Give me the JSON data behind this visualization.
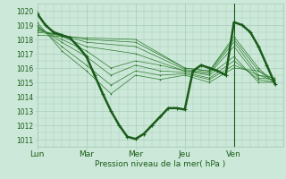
{
  "bg_color": "#cce8d8",
  "grid_color": "#aaccbb",
  "line_color_main": "#1a5c1a",
  "line_color_thin": "#2d7a2d",
  "xlabel": "Pression niveau de la mer( hPa )",
  "xtick_labels": [
    "Lun",
    "Mar",
    "Mer",
    "Jeu",
    "Ven"
  ],
  "ylim": [
    1010.5,
    1020.5
  ],
  "yticks": [
    1011,
    1012,
    1013,
    1014,
    1015,
    1016,
    1017,
    1018,
    1019,
    1020
  ],
  "x_days": [
    0,
    1,
    2,
    3,
    4
  ],
  "xlim": [
    0,
    5.0
  ],
  "vline_x": 4.0,
  "main_line_x": [
    0.0,
    0.167,
    0.333,
    0.5,
    0.667,
    0.833,
    1.0,
    1.167,
    1.333,
    1.5,
    1.667,
    1.833,
    2.0,
    2.167,
    2.333,
    2.5,
    2.667,
    2.833,
    3.0,
    3.167,
    3.333,
    3.5,
    3.667,
    3.833,
    4.0,
    4.167,
    4.333,
    4.5,
    4.667,
    4.833
  ],
  "main_line_y": [
    1019.8,
    1019.0,
    1018.5,
    1018.3,
    1018.1,
    1017.5,
    1016.8,
    1015.5,
    1014.2,
    1013.0,
    1012.0,
    1011.2,
    1011.05,
    1011.4,
    1012.0,
    1012.6,
    1013.2,
    1013.2,
    1013.1,
    1015.8,
    1016.2,
    1016.0,
    1015.8,
    1015.5,
    1019.2,
    1019.0,
    1018.5,
    1017.5,
    1016.2,
    1014.9
  ],
  "ensemble_lines": [
    {
      "x": [
        0.0,
        0.5,
        1.0,
        2.0,
        3.0,
        3.5,
        4.0,
        4.5,
        4.83
      ],
      "y": [
        1018.3,
        1018.2,
        1018.1,
        1018.0,
        1016.0,
        1015.8,
        1018.2,
        1016.0,
        1014.9
      ]
    },
    {
      "x": [
        0.0,
        0.5,
        1.0,
        2.0,
        3.0,
        3.5,
        4.0,
        4.5,
        4.83
      ],
      "y": [
        1018.5,
        1018.3,
        1018.0,
        1017.8,
        1016.0,
        1015.8,
        1018.0,
        1015.8,
        1015.2
      ]
    },
    {
      "x": [
        0.0,
        0.5,
        1.0,
        2.0,
        3.0,
        3.5,
        4.0,
        4.5,
        4.83
      ],
      "y": [
        1018.6,
        1018.3,
        1017.8,
        1017.5,
        1015.9,
        1015.7,
        1017.8,
        1015.5,
        1015.3
      ]
    },
    {
      "x": [
        0.0,
        0.5,
        1.0,
        2.0,
        3.0,
        3.5,
        4.0,
        4.5,
        4.83
      ],
      "y": [
        1018.7,
        1018.2,
        1017.5,
        1017.0,
        1015.8,
        1015.6,
        1017.5,
        1015.3,
        1015.2
      ]
    },
    {
      "x": [
        0.0,
        0.5,
        1.0,
        1.5,
        2.0,
        2.5,
        3.0,
        3.5,
        4.0,
        4.5,
        4.83
      ],
      "y": [
        1018.8,
        1018.0,
        1017.2,
        1016.0,
        1016.5,
        1016.2,
        1015.8,
        1015.5,
        1016.8,
        1015.0,
        1015.0
      ]
    },
    {
      "x": [
        0.0,
        0.5,
        1.0,
        1.5,
        2.0,
        2.5,
        3.0,
        3.5,
        4.0,
        4.5,
        4.83
      ],
      "y": [
        1018.9,
        1017.8,
        1016.8,
        1015.5,
        1016.2,
        1015.8,
        1015.7,
        1015.3,
        1016.5,
        1015.2,
        1015.0
      ]
    },
    {
      "x": [
        0.0,
        0.5,
        1.0,
        1.5,
        2.0,
        2.5,
        3.0,
        3.5,
        4.0,
        4.5,
        4.83
      ],
      "y": [
        1019.0,
        1017.5,
        1016.2,
        1014.8,
        1015.8,
        1015.5,
        1015.6,
        1015.2,
        1016.2,
        1015.5,
        1015.1
      ]
    },
    {
      "x": [
        0.0,
        0.5,
        1.0,
        1.5,
        2.0,
        2.5,
        3.0,
        3.5,
        4.0,
        4.5,
        4.83
      ],
      "y": [
        1019.2,
        1017.2,
        1015.8,
        1014.2,
        1015.5,
        1015.2,
        1015.5,
        1015.0,
        1016.0,
        1015.8,
        1015.0
      ]
    }
  ]
}
